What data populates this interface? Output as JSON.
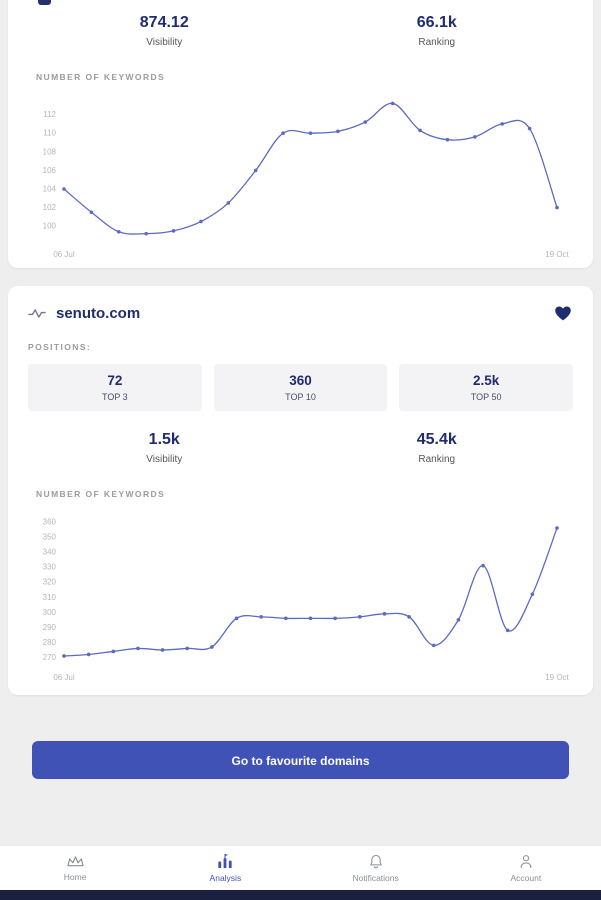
{
  "colors": {
    "accent": "#4052b6",
    "navy": "#1f2c6e",
    "line": "#5c6bc0",
    "tick": "#b5b5bd"
  },
  "card_top": {
    "stats": [
      {
        "value": "874.12",
        "label": "Visibility"
      },
      {
        "value": "66.1k",
        "label": "Ranking"
      }
    ],
    "section_label": "NUMBER OF KEYWORDS"
  },
  "card_domain": {
    "title": "senuto.com",
    "positions_label": "POSITIONS:",
    "boxes": [
      {
        "value": "72",
        "label": "TOP 3"
      },
      {
        "value": "360",
        "label": "TOP 10"
      },
      {
        "value": "2.5k",
        "label": "TOP 50"
      }
    ],
    "stats": [
      {
        "value": "1.5k",
        "label": "Visibility"
      },
      {
        "value": "45.4k",
        "label": "Ranking"
      }
    ],
    "section_label": "NUMBER OF KEYWORDS"
  },
  "button": {
    "label": "Go to favourite domains"
  },
  "nav": {
    "items": [
      {
        "label": "Home"
      },
      {
        "label": "Analysis"
      },
      {
        "label": "Notifications"
      },
      {
        "label": "Account"
      }
    ]
  },
  "chart_data": [
    {
      "type": "line",
      "title": "NUMBER OF KEYWORDS",
      "x_start_label": "06 Jul",
      "x_end_label": "19 Oct",
      "yticks": [
        100,
        102,
        104,
        106,
        108,
        110,
        112
      ],
      "ylim": [
        98.3,
        114
      ],
      "values": [
        104,
        101.5,
        99.4,
        99.2,
        99.5,
        100.5,
        102.5,
        106,
        110,
        110,
        110.2,
        111.2,
        113.2,
        110.3,
        109.3,
        109.6,
        111,
        110.5,
        102
      ]
    },
    {
      "type": "line",
      "title": "NUMBER OF KEYWORDS",
      "x_start_label": "06 Jul",
      "x_end_label": "19 Oct",
      "yticks": [
        270,
        280,
        290,
        300,
        310,
        320,
        330,
        340,
        350,
        360
      ],
      "ylim": [
        265,
        366
      ],
      "values": [
        271,
        272,
        274,
        276,
        275,
        276,
        277,
        296,
        297,
        296,
        296,
        296,
        297,
        299,
        297,
        278,
        295,
        331,
        288,
        312,
        356
      ]
    }
  ]
}
